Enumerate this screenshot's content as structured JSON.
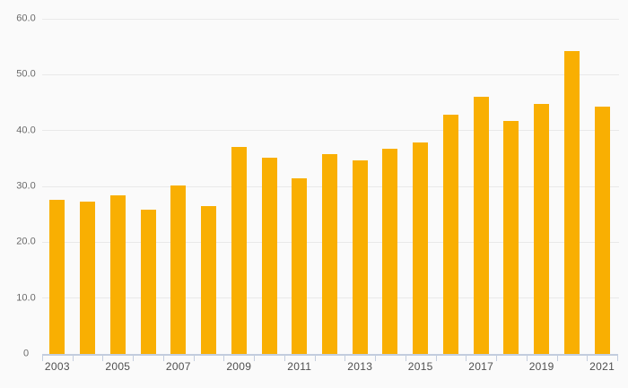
{
  "chart_data": {
    "type": "bar",
    "title": "",
    "categories": [
      "2003",
      "2004",
      "2005",
      "2006",
      "2007",
      "2008",
      "2009",
      "2010",
      "2011",
      "2012",
      "2013",
      "2014",
      "2015",
      "2016",
      "2017",
      "2018",
      "2019",
      "2020",
      "2021"
    ],
    "values": [
      27.6,
      27.3,
      28.4,
      25.8,
      30.2,
      26.5,
      37.1,
      35.1,
      31.4,
      35.8,
      34.7,
      36.8,
      37.8,
      42.8,
      46.0,
      41.7,
      44.7,
      54.2,
      44.3
    ],
    "x_tick_labels": [
      "2003",
      "2005",
      "2007",
      "2009",
      "2011",
      "2013",
      "2015",
      "2017",
      "2019",
      "2021"
    ],
    "y_ticks": [
      {
        "value": 0,
        "label": "0"
      },
      {
        "value": 10,
        "label": "10.0"
      },
      {
        "value": 20,
        "label": "20.0"
      },
      {
        "value": 30,
        "label": "30.0"
      },
      {
        "value": 40,
        "label": "40.0"
      },
      {
        "value": 50,
        "label": "50.0"
      },
      {
        "value": 60,
        "label": "60.0"
      }
    ],
    "ylim": [
      0,
      60
    ],
    "grid": true,
    "legend": false,
    "xlabel": "",
    "ylabel": "",
    "colors": {
      "bar": "#F9AF02",
      "background": "#FAFAFA",
      "gridline": "#E9E9E9",
      "axis": "#C3CDDE",
      "y_label": "#6B6B6B",
      "x_label": "#4F4F4F"
    }
  }
}
